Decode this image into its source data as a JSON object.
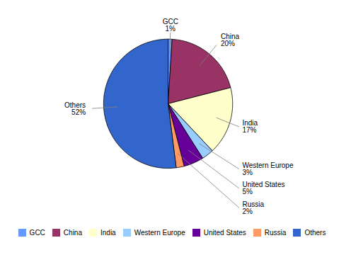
{
  "chart_data": {
    "type": "pie",
    "categories": [
      "GCC",
      "China",
      "India",
      "Western Europe",
      "United States",
      "Russia",
      "Others"
    ],
    "values": [
      1,
      20,
      17,
      3,
      5,
      2,
      52
    ],
    "value_labels": [
      "1%",
      "20%",
      "17%",
      "3%",
      "5%",
      "2%",
      "52%"
    ],
    "colors": [
      "#6699FF",
      "#993366",
      "#FFFFCC",
      "#99CCFF",
      "#660099",
      "#FF9966",
      "#3366CC"
    ],
    "data_labels": true,
    "legend": "bottom"
  }
}
